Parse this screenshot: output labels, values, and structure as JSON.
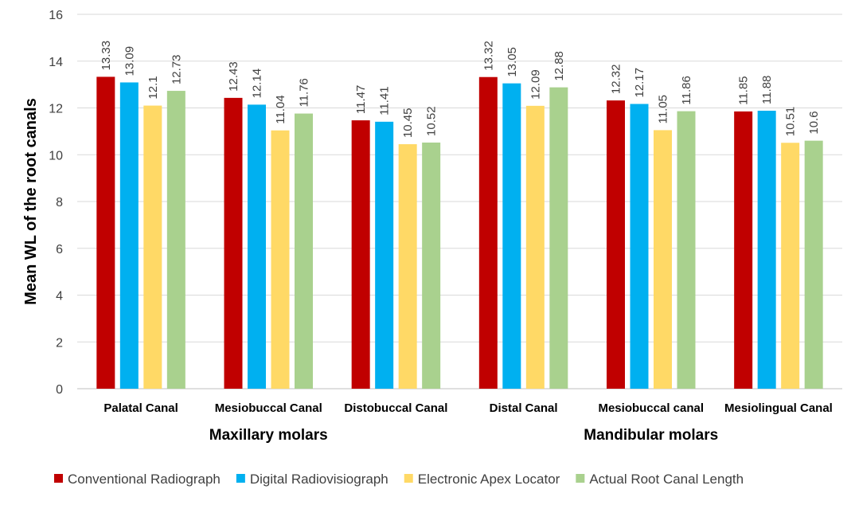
{
  "chart_data": {
    "type": "bar",
    "title": "",
    "ylabel": "Mean WL of the root canals",
    "ylim": [
      0,
      16
    ],
    "yticks": [
      0,
      2,
      4,
      6,
      8,
      10,
      12,
      14,
      16
    ],
    "grid": "horizontal",
    "legend_position": "bottom",
    "categories": [
      "Palatal Canal",
      "Mesiobuccal Canal",
      "Distobuccal Canal",
      "Distal Canal",
      "Mesiobuccal canal",
      "Mesiolingual Canal"
    ],
    "category_groups": [
      {
        "label": "Maxillary molars",
        "categories": [
          "Palatal Canal",
          "Mesiobuccal Canal",
          "Distobuccal Canal"
        ]
      },
      {
        "label": "Mandibular molars",
        "categories": [
          "Distal Canal",
          "Mesiobuccal canal",
          "Mesiolingual Canal"
        ]
      }
    ],
    "series": [
      {
        "name": "Conventional Radiograph",
        "color": "#C00000",
        "values": [
          13.33,
          12.43,
          11.47,
          13.32,
          12.32,
          11.85
        ]
      },
      {
        "name": "Digital Radiovisiograph",
        "color": "#00B0F0",
        "values": [
          13.09,
          12.14,
          11.41,
          13.05,
          12.17,
          11.88
        ]
      },
      {
        "name": "Electronic Apex Locator",
        "color": "#FFD966",
        "values": [
          12.1,
          11.04,
          10.45,
          12.09,
          11.05,
          10.51
        ]
      },
      {
        "name": "Actual Root Canal Length",
        "color": "#A9D18E",
        "values": [
          12.73,
          11.76,
          10.52,
          12.88,
          11.86,
          10.6
        ]
      }
    ]
  }
}
